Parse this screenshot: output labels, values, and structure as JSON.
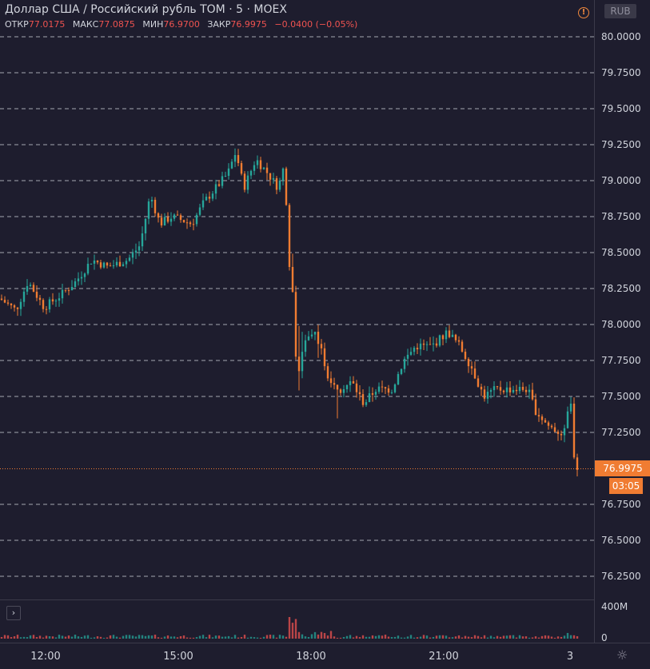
{
  "header": {
    "symbol_title": "Доллар США / Российский рубль TOM · 5 · MOEX",
    "ohlc": {
      "open_label": "ОТКР",
      "open_value": "77.0175",
      "high_label": "МАКС",
      "high_value": "77.0875",
      "low_label": "МИН",
      "low_value": "76.9700",
      "close_label": "ЗАКР",
      "close_value": "76.9975",
      "change": "−0.0400 (−0.05%)"
    },
    "warning_icon": "exclamation-circle-icon",
    "currency": "RUB"
  },
  "price_axis": {
    "ticks": [
      "80.0000",
      "79.7500",
      "79.5000",
      "79.2500",
      "79.0000",
      "78.7500",
      "78.5000",
      "78.2500",
      "78.0000",
      "77.7500",
      "77.5000",
      "77.2500",
      "76.7500",
      "76.5000",
      "76.2500"
    ],
    "tick_values": [
      80.0,
      79.75,
      79.5,
      79.25,
      79.0,
      78.75,
      78.5,
      78.25,
      78.0,
      77.75,
      77.5,
      77.25,
      76.75,
      76.5,
      76.25
    ],
    "last_price": "76.9975",
    "last_price_value": 76.9975,
    "countdown": "03:05",
    "volume_ticks": [
      "400M",
      "0"
    ]
  },
  "time_axis": {
    "ticks": [
      "12:00",
      "15:00",
      "18:00",
      "21:00",
      "3"
    ],
    "settings_icon": "gear-icon"
  },
  "colors": {
    "up": "#26a69a",
    "down": "#f07c32",
    "volume_up": "#26a69a",
    "volume_down": "#ef5350",
    "last_price": "#f07c32"
  },
  "chart_data": {
    "type": "candlestick",
    "series": [
      {
        "name": "USDRUB_TOM",
        "anchors": [
          [
            0,
            78.18
          ],
          [
            20,
            78.1
          ],
          [
            35,
            78.3
          ],
          [
            55,
            78.12
          ],
          [
            75,
            78.2
          ],
          [
            95,
            78.3
          ],
          [
            115,
            78.45
          ],
          [
            135,
            78.4
          ],
          [
            160,
            78.45
          ],
          [
            175,
            78.55
          ],
          [
            188,
            78.9
          ],
          [
            200,
            78.7
          ],
          [
            215,
            78.75
          ],
          [
            240,
            78.7
          ],
          [
            255,
            78.85
          ],
          [
            270,
            78.95
          ],
          [
            285,
            79.05
          ],
          [
            295,
            79.2
          ],
          [
            305,
            78.95
          ],
          [
            320,
            79.15
          ],
          [
            335,
            79.05
          ],
          [
            348,
            78.95
          ],
          [
            355,
            79.1
          ],
          [
            365,
            78.3
          ],
          [
            372,
            77.6
          ],
          [
            380,
            77.9
          ],
          [
            395,
            77.95
          ],
          [
            410,
            77.65
          ],
          [
            425,
            77.55
          ],
          [
            440,
            77.6
          ],
          [
            455,
            77.45
          ],
          [
            470,
            77.55
          ],
          [
            490,
            77.55
          ],
          [
            505,
            77.75
          ],
          [
            520,
            77.85
          ],
          [
            540,
            77.85
          ],
          [
            560,
            77.95
          ],
          [
            575,
            77.85
          ],
          [
            590,
            77.7
          ],
          [
            605,
            77.5
          ],
          [
            620,
            77.55
          ],
          [
            640,
            77.55
          ],
          [
            660,
            77.55
          ],
          [
            670,
            77.4
          ],
          [
            685,
            77.3
          ],
          [
            700,
            77.25
          ],
          [
            708,
            77.25
          ],
          [
            714,
            77.65
          ],
          [
            718,
            77.1
          ],
          [
            722,
            77.0
          ]
        ]
      }
    ]
  }
}
